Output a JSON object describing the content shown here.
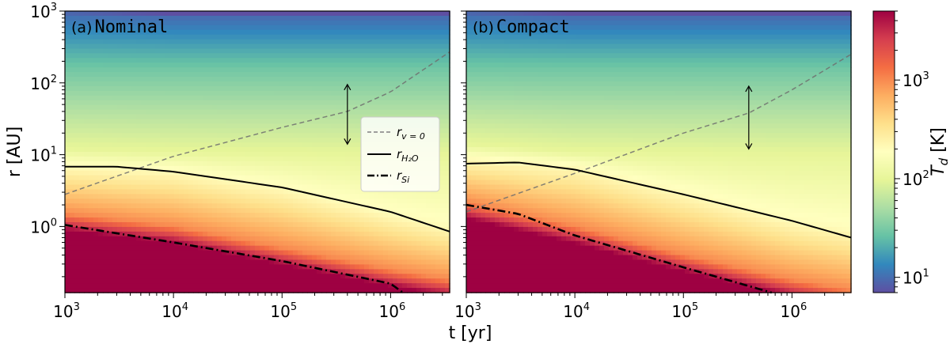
{
  "chart_data": {
    "type": "heatmap",
    "colormap": "Spectral_r",
    "x_scale": "log",
    "y_scale": "log",
    "shared_xlabel": "t [yr]",
    "ylabel": "r [AU]",
    "colorbar": {
      "label": "T_d [K]",
      "scale": "log",
      "range": [
        7,
        5000
      ],
      "ticks": [
        {
          "base": "10",
          "exp": "1",
          "value": 10
        },
        {
          "base": "10",
          "exp": "2",
          "value": 100
        },
        {
          "base": "10",
          "exp": "3",
          "value": 1000
        }
      ]
    },
    "xlim": [
      1000,
      3500000
    ],
    "ylim": [
      0.12,
      1000
    ],
    "x_ticks": [
      {
        "base": "10",
        "exp": "3",
        "value": 1000
      },
      {
        "base": "10",
        "exp": "4",
        "value": 10000
      },
      {
        "base": "10",
        "exp": "5",
        "value": 100000
      },
      {
        "base": "10",
        "exp": "6",
        "value": 1000000
      }
    ],
    "y_ticks": [
      {
        "base": "10",
        "exp": "0",
        "value": 1
      },
      {
        "base": "10",
        "exp": "1",
        "value": 10
      },
      {
        "base": "10",
        "exp": "2",
        "value": 100
      },
      {
        "base": "10",
        "exp": "3",
        "value": 1000
      }
    ],
    "legend": {
      "placement": "center-right of panel (a)",
      "entries": [
        {
          "id": "rv0",
          "text": "r",
          "sub": "v = 0",
          "style": "dashed",
          "color": "#808080"
        },
        {
          "id": "rh2o",
          "text": "r",
          "sub": "H₂O",
          "style": "solid",
          "color": "#000000"
        },
        {
          "id": "rsi",
          "text": "r",
          "sub": "Si",
          "style": "dashdot",
          "color": "#000000"
        }
      ]
    },
    "panels": [
      {
        "id": "a",
        "title": "(a)",
        "name": "Nominal",
        "temperature_field": {
          "t": [
            1000,
            10000,
            100000,
            1000000,
            3500000
          ],
          "r_10K": [
            900,
            800,
            800,
            800,
            800
          ],
          "r_30K": [
            150,
            150,
            150,
            150,
            150
          ],
          "r_100K": [
            12,
            11,
            10.5,
            10,
            10
          ],
          "r_200K": [
            7,
            6,
            3.5,
            1.5,
            1
          ],
          "r_1000K": [
            1.5,
            1,
            0.5,
            0.25,
            0.18
          ]
        },
        "series": [
          {
            "id": "rv0",
            "t": [
              1000,
              10000,
              100000,
              400000,
              1000000,
              3500000
            ],
            "r": [
              2.8,
              9.5,
              24,
              40,
              75,
              270
            ]
          },
          {
            "id": "rh2o",
            "t": [
              1000,
              3000,
              10000,
              100000,
              1000000,
              3500000
            ],
            "r": [
              6.8,
              6.8,
              5.8,
              3.5,
              1.6,
              0.85
            ]
          },
          {
            "id": "rsi",
            "t": [
              1000,
              10000,
              100000,
              1000000,
              1300000
            ],
            "r": [
              1.05,
              0.6,
              0.33,
              0.16,
              0.12
            ]
          }
        ],
        "arrow": {
          "t": 400000,
          "r_top": 95,
          "r_bottom": 14
        }
      },
      {
        "id": "b",
        "title": "(b)",
        "name": "Compact",
        "temperature_field": {
          "t": [
            1000,
            10000,
            100000,
            1000000,
            3500000
          ],
          "r_10K": [
            900,
            800,
            800,
            800,
            800
          ],
          "r_30K": [
            150,
            150,
            150,
            150,
            150
          ],
          "r_100K": [
            14,
            11,
            10.5,
            10,
            10
          ],
          "r_200K": [
            9,
            7,
            3,
            1.2,
            0.9
          ],
          "r_1000K": [
            2.2,
            1,
            0.4,
            0.18,
            0.13
          ]
        },
        "series": [
          {
            "id": "rv0",
            "t": [
              1000,
              10000,
              100000,
              400000,
              1000000,
              3500000
            ],
            "r": [
              1.6,
              5.5,
              20,
              38,
              80,
              250
            ]
          },
          {
            "id": "rh2o",
            "t": [
              1000,
              3000,
              10000,
              100000,
              1000000,
              3500000
            ],
            "r": [
              7.5,
              7.8,
              6.2,
              2.8,
              1.2,
              0.7
            ]
          },
          {
            "id": "rsi",
            "t": [
              1000,
              3000,
              10000,
              100000,
              650000
            ],
            "r": [
              2,
              1.5,
              0.75,
              0.27,
              0.12
            ]
          }
        ],
        "arrow": {
          "t": 400000,
          "r_top": 90,
          "r_bottom": 12
        }
      }
    ]
  }
}
